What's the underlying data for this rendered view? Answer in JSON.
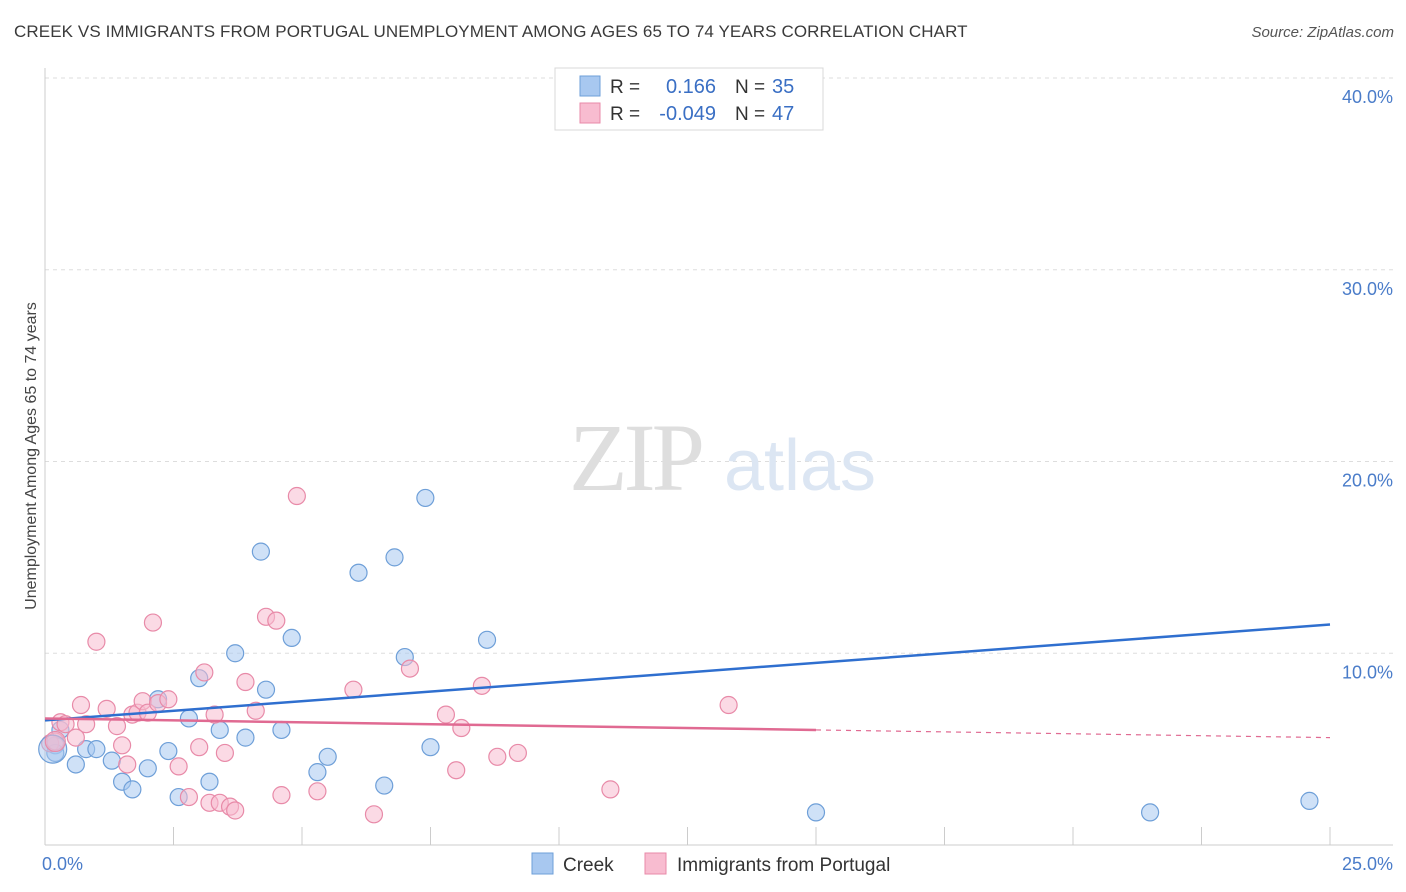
{
  "title": "CREEK VS IMMIGRANTS FROM PORTUGAL UNEMPLOYMENT AMONG AGES 65 TO 74 YEARS CORRELATION CHART",
  "source": "Source: ZipAtlas.com",
  "watermark": {
    "zip": "ZIP",
    "atlas": "atlas"
  },
  "chart_data": {
    "type": "scatter",
    "xlabel": "",
    "ylabel": "Unemployment Among Ages 65 to 74 years",
    "xlim": [
      0,
      25
    ],
    "ylim": [
      0,
      40
    ],
    "x_tick_labels": [
      "0.0%",
      "25.0%"
    ],
    "y_tick_labels": [
      "10.0%",
      "20.0%",
      "30.0%",
      "40.0%"
    ],
    "y_ticks": [
      10,
      20,
      30,
      40
    ],
    "grid": true,
    "legend_position": "top-center",
    "stats": [
      {
        "r_label": "R =",
        "r": "0.166",
        "n_label": "N =",
        "n": "35"
      },
      {
        "r_label": "R =",
        "r": "-0.049",
        "n_label": "N =",
        "n": "47"
      }
    ],
    "series": [
      {
        "name": "Creek",
        "color": "#a8c8f0",
        "stroke": "#6e9fd8",
        "trend_color": "#2f6fcf",
        "trend": {
          "x0": 0,
          "y0": 6.5,
          "x1": 25,
          "y1": 11.5,
          "dashed_from": null
        },
        "points": [
          [
            0.2,
            5.2
          ],
          [
            0.2,
            4.8
          ],
          [
            0.3,
            6.0
          ],
          [
            0.6,
            4.2
          ],
          [
            0.8,
            5.0
          ],
          [
            1.0,
            5.0
          ],
          [
            1.3,
            4.4
          ],
          [
            1.5,
            3.3
          ],
          [
            1.7,
            2.9
          ],
          [
            2.0,
            4.0
          ],
          [
            2.2,
            7.6
          ],
          [
            2.4,
            4.9
          ],
          [
            2.6,
            2.5
          ],
          [
            2.8,
            6.6
          ],
          [
            3.0,
            8.7
          ],
          [
            3.2,
            3.3
          ],
          [
            3.4,
            6.0
          ],
          [
            3.7,
            10.0
          ],
          [
            3.9,
            5.6
          ],
          [
            4.2,
            15.3
          ],
          [
            4.3,
            8.1
          ],
          [
            4.6,
            6.0
          ],
          [
            4.8,
            10.8
          ],
          [
            5.3,
            3.8
          ],
          [
            5.5,
            4.6
          ],
          [
            6.1,
            14.2
          ],
          [
            6.6,
            3.1
          ],
          [
            6.8,
            15.0
          ],
          [
            7.0,
            9.8
          ],
          [
            7.4,
            18.1
          ],
          [
            7.5,
            5.1
          ],
          [
            8.6,
            10.7
          ],
          [
            15.0,
            1.7
          ],
          [
            21.5,
            1.7
          ],
          [
            24.6,
            2.3
          ]
        ]
      },
      {
        "name": "Immigrants from Portugal",
        "color": "#f8bcd0",
        "stroke": "#e88aa8",
        "trend_color": "#e06a92",
        "trend": {
          "x0": 0,
          "y0": 6.6,
          "x1": 25,
          "y1": 5.6,
          "dashed_from": 15
        },
        "points": [
          [
            0.1,
            5.3
          ],
          [
            0.2,
            5.4
          ],
          [
            0.3,
            6.4
          ],
          [
            0.4,
            6.3
          ],
          [
            0.6,
            5.6
          ],
          [
            0.7,
            7.3
          ],
          [
            0.8,
            6.3
          ],
          [
            1.0,
            10.6
          ],
          [
            1.2,
            7.1
          ],
          [
            1.4,
            6.2
          ],
          [
            1.5,
            5.2
          ],
          [
            1.6,
            4.2
          ],
          [
            1.7,
            6.8
          ],
          [
            1.8,
            6.9
          ],
          [
            1.9,
            7.5
          ],
          [
            2.0,
            6.9
          ],
          [
            2.1,
            11.6
          ],
          [
            2.2,
            7.4
          ],
          [
            2.4,
            7.6
          ],
          [
            2.6,
            4.1
          ],
          [
            2.8,
            2.5
          ],
          [
            3.0,
            5.1
          ],
          [
            3.1,
            9.0
          ],
          [
            3.2,
            2.2
          ],
          [
            3.3,
            6.8
          ],
          [
            3.4,
            2.2
          ],
          [
            3.5,
            4.8
          ],
          [
            3.6,
            2.0
          ],
          [
            3.7,
            1.8
          ],
          [
            3.9,
            8.5
          ],
          [
            4.1,
            7.0
          ],
          [
            4.3,
            11.9
          ],
          [
            4.5,
            11.7
          ],
          [
            4.6,
            2.6
          ],
          [
            4.9,
            18.2
          ],
          [
            5.3,
            2.8
          ],
          [
            6.0,
            8.1
          ],
          [
            6.4,
            1.6
          ],
          [
            7.1,
            9.2
          ],
          [
            7.8,
            6.8
          ],
          [
            8.0,
            3.9
          ],
          [
            8.1,
            6.1
          ],
          [
            8.5,
            8.3
          ],
          [
            8.8,
            4.6
          ],
          [
            9.2,
            4.8
          ],
          [
            11.0,
            2.9
          ],
          [
            13.3,
            7.3
          ]
        ]
      }
    ]
  }
}
